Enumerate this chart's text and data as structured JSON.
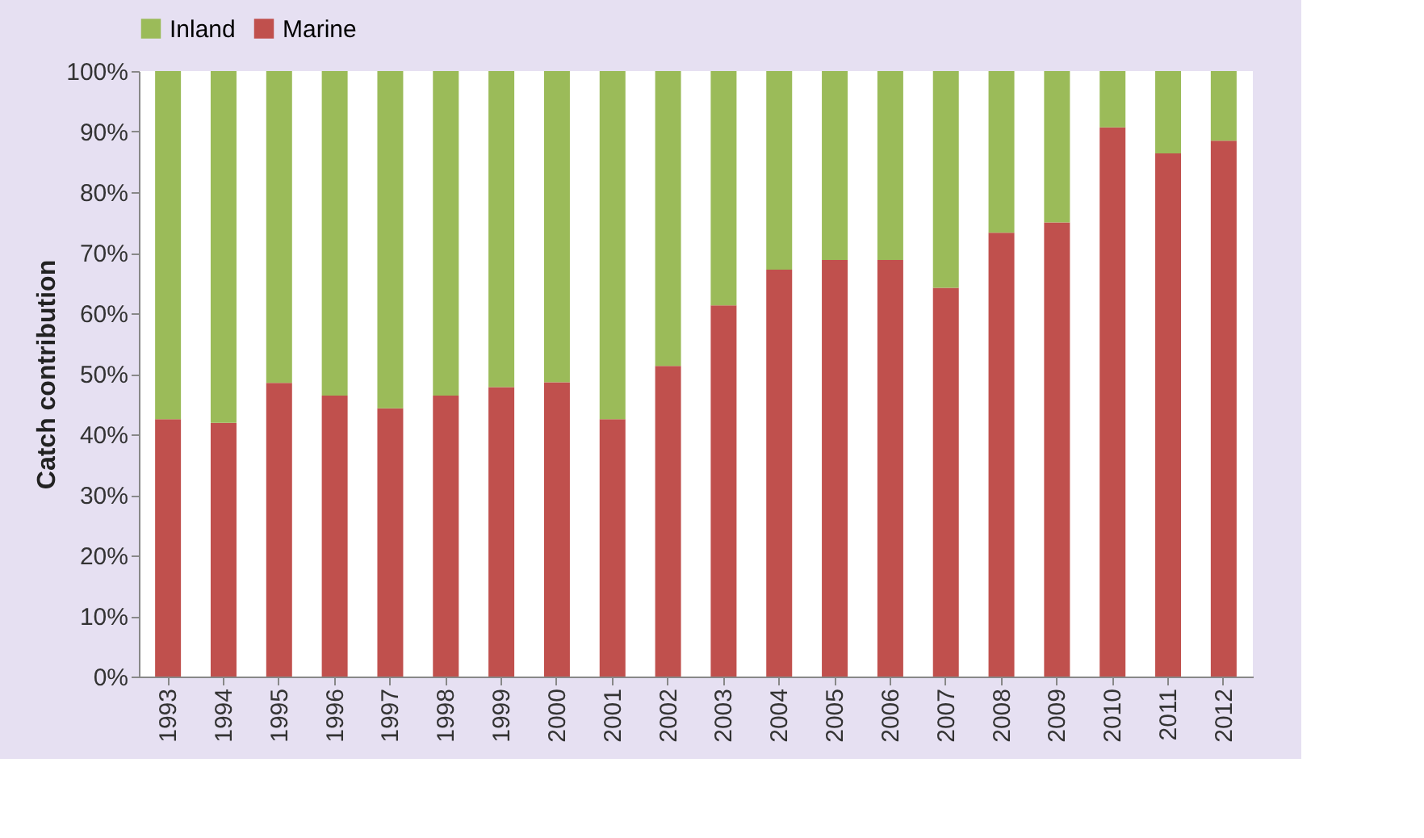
{
  "chart_data": {
    "type": "bar",
    "stacked": true,
    "ylabel": "Catch contribution",
    "legend": "top",
    "categories": [
      "1993",
      "1994",
      "1995",
      "1996",
      "1997",
      "1998",
      "1999",
      "2000",
      "2001",
      "2002",
      "2003",
      "2004",
      "2005",
      "2006",
      "2007",
      "2008",
      "2009",
      "2010",
      "2011",
      "2012"
    ],
    "series": [
      {
        "name": "Marine",
        "color": "#c0504d",
        "values": [
          42.5,
          41.9,
          48.5,
          46.4,
          44.3,
          46.4,
          47.8,
          48.6,
          42.5,
          51.3,
          61.3,
          67.2,
          68.8,
          68.8,
          64.2,
          73.3,
          75.0,
          90.7,
          86.4,
          88.5
        ]
      },
      {
        "name": "Inland",
        "color": "#9bbb59",
        "values": [
          57.5,
          58.1,
          51.5,
          53.6,
          55.7,
          53.6,
          52.2,
          51.4,
          57.5,
          48.7,
          38.7,
          32.8,
          31.2,
          31.2,
          35.8,
          26.7,
          25.0,
          9.3,
          13.6,
          11.5
        ]
      }
    ],
    "ylim": [
      0,
      100
    ],
    "yticks": [
      {
        "value": 0,
        "label": "0%"
      },
      {
        "value": 10,
        "label": "10%"
      },
      {
        "value": 20,
        "label": "20%"
      },
      {
        "value": 30,
        "label": "30%"
      },
      {
        "value": 40,
        "label": "40%"
      },
      {
        "value": 50,
        "label": "50%"
      },
      {
        "value": 60,
        "label": "60%"
      },
      {
        "value": 70,
        "label": "70%"
      },
      {
        "value": 80,
        "label": "80%"
      },
      {
        "value": 90,
        "label": "90%"
      },
      {
        "value": 100,
        "label": "100%"
      }
    ],
    "grid": false
  }
}
